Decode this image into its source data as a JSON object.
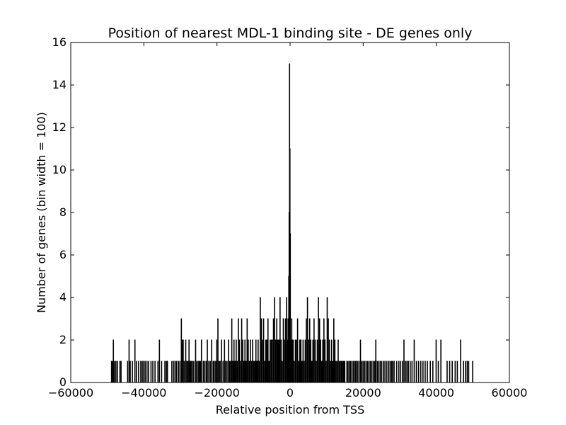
{
  "chart_data": {
    "type": "bar",
    "title": "Position of nearest MDL-1 binding site - DE genes only",
    "xlabel": "Relative position from TSS",
    "ylabel": "Number of genes (bin width = 100)",
    "xlim": [
      -60000,
      60000
    ],
    "ylim": [
      0,
      16
    ],
    "xticks": [
      -60000,
      -40000,
      -20000,
      0,
      20000,
      40000,
      60000
    ],
    "xtick_labels": [
      "−60000",
      "−40000",
      "−20000",
      "0",
      "20000",
      "40000",
      "60000"
    ],
    "yticks": [
      0,
      2,
      4,
      6,
      8,
      10,
      12,
      14,
      16
    ],
    "ytick_labels": [
      "0",
      "2",
      "4",
      "6",
      "8",
      "10",
      "12",
      "14",
      "16"
    ],
    "bin_width": 100,
    "bar_color": "#000000",
    "grid": false,
    "bins": [
      [
        -48900,
        1
      ],
      [
        -48600,
        1
      ],
      [
        -48400,
        2
      ],
      [
        -48100,
        1
      ],
      [
        -47700,
        1
      ],
      [
        -47300,
        1
      ],
      [
        -46600,
        1
      ],
      [
        -46300,
        1
      ],
      [
        -44500,
        1
      ],
      [
        -44100,
        2
      ],
      [
        -43800,
        1
      ],
      [
        -43200,
        1
      ],
      [
        -42500,
        2
      ],
      [
        -42100,
        1
      ],
      [
        -41500,
        1
      ],
      [
        -40900,
        1
      ],
      [
        -40500,
        1
      ],
      [
        -40100,
        1
      ],
      [
        -39700,
        1
      ],
      [
        -39200,
        1
      ],
      [
        -38800,
        1
      ],
      [
        -38100,
        1
      ],
      [
        -37600,
        1
      ],
      [
        -37000,
        1
      ],
      [
        -36200,
        1
      ],
      [
        -35800,
        2
      ],
      [
        -35200,
        1
      ],
      [
        -34300,
        1
      ],
      [
        -33900,
        1
      ],
      [
        -33600,
        1
      ],
      [
        -32400,
        1
      ],
      [
        -31900,
        1
      ],
      [
        -31500,
        1
      ],
      [
        -31100,
        1
      ],
      [
        -30600,
        1
      ],
      [
        -30200,
        1
      ],
      [
        -29800,
        3
      ],
      [
        -29600,
        2
      ],
      [
        -29300,
        2
      ],
      [
        -29000,
        1
      ],
      [
        -28600,
        2
      ],
      [
        -28300,
        1
      ],
      [
        -28000,
        1
      ],
      [
        -27700,
        2
      ],
      [
        -27400,
        1
      ],
      [
        -27100,
        1
      ],
      [
        -26700,
        1
      ],
      [
        -26400,
        1
      ],
      [
        -25900,
        2
      ],
      [
        -25600,
        1
      ],
      [
        -25200,
        1
      ],
      [
        -24900,
        1
      ],
      [
        -24600,
        1
      ],
      [
        -24300,
        2
      ],
      [
        -23800,
        1
      ],
      [
        -23400,
        1
      ],
      [
        -23000,
        1
      ],
      [
        -22700,
        2
      ],
      [
        -22300,
        1
      ],
      [
        -21900,
        1
      ],
      [
        -21500,
        2
      ],
      [
        -21100,
        1
      ],
      [
        -20800,
        1
      ],
      [
        -20400,
        1
      ],
      [
        -20100,
        2
      ],
      [
        -19800,
        3
      ],
      [
        -19500,
        1
      ],
      [
        -19200,
        1
      ],
      [
        -18800,
        2
      ],
      [
        -18400,
        1
      ],
      [
        -18000,
        2
      ],
      [
        -17700,
        1
      ],
      [
        -17300,
        1
      ],
      [
        -16900,
        2
      ],
      [
        -16600,
        1
      ],
      [
        -16300,
        1
      ],
      [
        -16000,
        3
      ],
      [
        -15700,
        1
      ],
      [
        -15400,
        2
      ],
      [
        -15100,
        1
      ],
      [
        -14800,
        2
      ],
      [
        -14500,
        1
      ],
      [
        -14200,
        3
      ],
      [
        -13900,
        2
      ],
      [
        -13600,
        1
      ],
      [
        -13300,
        3
      ],
      [
        -13000,
        2
      ],
      [
        -12700,
        1
      ],
      [
        -12400,
        2
      ],
      [
        -12100,
        1
      ],
      [
        -11800,
        3
      ],
      [
        -11500,
        2
      ],
      [
        -11200,
        1
      ],
      [
        -10900,
        2
      ],
      [
        -10600,
        1
      ],
      [
        -10300,
        2
      ],
      [
        -10000,
        1
      ],
      [
        -9700,
        1
      ],
      [
        -9400,
        2
      ],
      [
        -9100,
        1
      ],
      [
        -8800,
        2
      ],
      [
        -8500,
        1
      ],
      [
        -8200,
        4
      ],
      [
        -7900,
        3
      ],
      [
        -7600,
        2
      ],
      [
        -7300,
        3
      ],
      [
        -7000,
        1
      ],
      [
        -6700,
        2
      ],
      [
        -6400,
        2
      ],
      [
        -6100,
        3
      ],
      [
        -5800,
        1
      ],
      [
        -5500,
        2
      ],
      [
        -5200,
        2
      ],
      [
        -4900,
        2
      ],
      [
        -4600,
        3
      ],
      [
        -4300,
        4
      ],
      [
        -4000,
        2
      ],
      [
        -3700,
        3
      ],
      [
        -3400,
        2
      ],
      [
        -3100,
        2
      ],
      [
        -2800,
        4
      ],
      [
        -2500,
        2
      ],
      [
        -2200,
        1
      ],
      [
        -1900,
        3
      ],
      [
        -1600,
        2
      ],
      [
        -1300,
        3
      ],
      [
        -1000,
        4
      ],
      [
        -800,
        2
      ],
      [
        -600,
        3
      ],
      [
        -400,
        5
      ],
      [
        -300,
        8
      ],
      [
        -200,
        15
      ],
      [
        -100,
        11
      ],
      [
        0,
        7
      ],
      [
        100,
        2
      ],
      [
        200,
        2
      ],
      [
        400,
        3
      ],
      [
        600,
        2
      ],
      [
        800,
        2
      ],
      [
        1100,
        1
      ],
      [
        1400,
        2
      ],
      [
        1700,
        2
      ],
      [
        2000,
        3
      ],
      [
        2300,
        1
      ],
      [
        2600,
        2
      ],
      [
        2900,
        2
      ],
      [
        3200,
        1
      ],
      [
        3500,
        2
      ],
      [
        3800,
        1
      ],
      [
        4100,
        2
      ],
      [
        4400,
        3
      ],
      [
        4700,
        4
      ],
      [
        5000,
        2
      ],
      [
        5300,
        3
      ],
      [
        5600,
        2
      ],
      [
        5900,
        1
      ],
      [
        6200,
        2
      ],
      [
        6500,
        3
      ],
      [
        6800,
        2
      ],
      [
        7100,
        1
      ],
      [
        7400,
        2
      ],
      [
        7700,
        4
      ],
      [
        8000,
        3
      ],
      [
        8300,
        2
      ],
      [
        8600,
        1
      ],
      [
        8900,
        2
      ],
      [
        9200,
        3
      ],
      [
        9500,
        2
      ],
      [
        9800,
        1
      ],
      [
        10100,
        4
      ],
      [
        10400,
        3
      ],
      [
        10700,
        2
      ],
      [
        11000,
        1
      ],
      [
        11300,
        2
      ],
      [
        11600,
        1
      ],
      [
        11900,
        3
      ],
      [
        12200,
        2
      ],
      [
        12500,
        1
      ],
      [
        12800,
        1
      ],
      [
        13100,
        2
      ],
      [
        13400,
        1
      ],
      [
        13700,
        1
      ],
      [
        14000,
        1
      ],
      [
        14300,
        1
      ],
      [
        14600,
        1
      ],
      [
        14900,
        1
      ],
      [
        15500,
        1
      ],
      [
        15800,
        1
      ],
      [
        16200,
        1
      ],
      [
        16500,
        1
      ],
      [
        16900,
        1
      ],
      [
        17300,
        1
      ],
      [
        17700,
        1
      ],
      [
        18000,
        1
      ],
      [
        18400,
        1
      ],
      [
        18800,
        1
      ],
      [
        19200,
        2
      ],
      [
        19500,
        1
      ],
      [
        19900,
        1
      ],
      [
        20300,
        1
      ],
      [
        20700,
        1
      ],
      [
        21100,
        1
      ],
      [
        21500,
        1
      ],
      [
        21900,
        1
      ],
      [
        22300,
        1
      ],
      [
        22700,
        1
      ],
      [
        23100,
        1
      ],
      [
        23400,
        2
      ],
      [
        23800,
        1
      ],
      [
        24200,
        1
      ],
      [
        24600,
        1
      ],
      [
        25000,
        1
      ],
      [
        25500,
        1
      ],
      [
        25900,
        1
      ],
      [
        26400,
        1
      ],
      [
        26900,
        1
      ],
      [
        27300,
        1
      ],
      [
        27700,
        1
      ],
      [
        28000,
        1
      ],
      [
        28400,
        1
      ],
      [
        29100,
        1
      ],
      [
        29700,
        1
      ],
      [
        30200,
        1
      ],
      [
        30700,
        1
      ],
      [
        31100,
        2
      ],
      [
        31500,
        1
      ],
      [
        31900,
        1
      ],
      [
        32300,
        1
      ],
      [
        32800,
        1
      ],
      [
        33300,
        1
      ],
      [
        33900,
        2
      ],
      [
        34500,
        1
      ],
      [
        35100,
        1
      ],
      [
        35700,
        1
      ],
      [
        36300,
        1
      ],
      [
        36900,
        1
      ],
      [
        37500,
        1
      ],
      [
        38300,
        1
      ],
      [
        39000,
        1
      ],
      [
        39900,
        2
      ],
      [
        40500,
        1
      ],
      [
        41200,
        2
      ],
      [
        42900,
        1
      ],
      [
        43600,
        1
      ],
      [
        44300,
        1
      ],
      [
        45100,
        1
      ],
      [
        45700,
        1
      ],
      [
        46600,
        2
      ],
      [
        47400,
        1
      ],
      [
        47900,
        1
      ],
      [
        48400,
        1
      ],
      [
        48800,
        1
      ],
      [
        49900,
        1
      ]
    ]
  }
}
